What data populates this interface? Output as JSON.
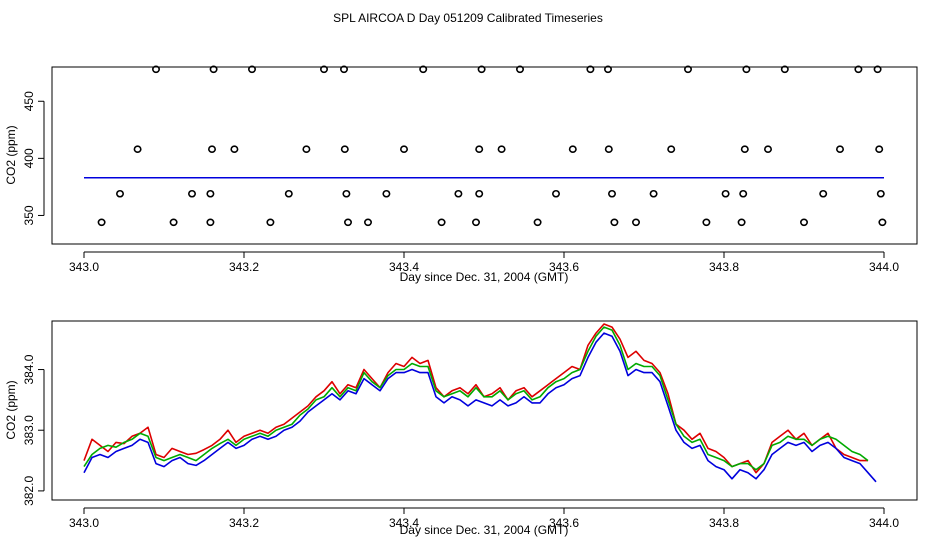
{
  "title": "SPL AIRCOA D  Day 051209  Calibrated Timeseries",
  "colors": {
    "red": "#dd0000",
    "green": "#00aa00",
    "blue": "#0000dd",
    "axis": "#000000"
  },
  "chart_data": [
    {
      "type": "scatter",
      "xlabel": "Day since Dec. 31, 2004 (GMT)",
      "ylabel": "CO2 (ppm)",
      "xlim": [
        343.0,
        344.0
      ],
      "ylim": [
        325,
        480
      ],
      "xticks": [
        343.0,
        343.2,
        343.4,
        343.6,
        343.8,
        344.0
      ],
      "xtick_labels": [
        "343.0",
        "343.2",
        "343.4",
        "343.6",
        "343.8",
        "344.0"
      ],
      "yticks": [
        350,
        400,
        450
      ],
      "ytick_labels": [
        "350",
        "400",
        "450"
      ],
      "reference_points": {
        "x": [
          343.09,
          343.162,
          343.21,
          343.3,
          343.325,
          343.424,
          343.497,
          343.545,
          343.633,
          343.655,
          343.755,
          343.828,
          343.876,
          343.968,
          343.992,
          343.067,
          343.16,
          343.188,
          343.278,
          343.326,
          343.4,
          343.494,
          343.522,
          343.611,
          343.656,
          343.734,
          343.826,
          343.855,
          343.945,
          343.994,
          343.045,
          343.135,
          343.158,
          343.256,
          343.328,
          343.378,
          343.468,
          343.494,
          343.59,
          343.66,
          343.712,
          343.802,
          343.824,
          343.924,
          343.996,
          343.022,
          343.112,
          343.158,
          343.233,
          343.33,
          343.355,
          343.447,
          343.49,
          343.567,
          343.663,
          343.69,
          343.778,
          343.822,
          343.9,
          343.998
        ],
        "y": [
          478,
          478,
          478,
          478,
          478,
          478,
          478,
          478,
          478,
          478,
          478,
          478,
          478,
          478,
          478,
          408,
          408,
          408,
          408,
          408,
          408,
          408,
          408,
          408,
          408,
          408,
          408,
          408,
          408,
          408,
          369,
          369,
          369,
          369,
          369,
          369,
          369,
          369,
          369,
          369,
          369,
          369,
          369,
          369,
          369,
          344,
          344,
          344,
          344,
          344,
          344,
          344,
          344,
          344,
          344,
          344,
          344,
          344,
          344,
          344
        ]
      },
      "series": [
        {
          "name": "red",
          "color": "#dd0000",
          "x": [
            343.0,
            344.0
          ],
          "values": [
            383.0,
            383.0
          ]
        },
        {
          "name": "green",
          "color": "#00aa00",
          "x": [
            343.0,
            344.0
          ],
          "values": [
            383.0,
            383.0
          ]
        },
        {
          "name": "blue",
          "color": "#0000dd",
          "x": [
            343.0,
            344.0
          ],
          "values": [
            383.0,
            383.0
          ]
        }
      ]
    },
    {
      "type": "line",
      "xlabel": "Day since Dec. 31, 2004 (GMT)",
      "ylabel": "CO2 (ppm)",
      "xlim": [
        343.0,
        344.0
      ],
      "ylim": [
        381.85,
        384.8
      ],
      "xticks": [
        343.0,
        343.2,
        343.4,
        343.6,
        343.8,
        344.0
      ],
      "xtick_labels": [
        "343.0",
        "343.2",
        "343.4",
        "343.6",
        "343.8",
        "344.0"
      ],
      "yticks": [
        382.0,
        383.0,
        384.0
      ],
      "ytick_labels": [
        "382.0",
        "383.0",
        "384.0"
      ],
      "series": [
        {
          "name": "red",
          "color": "#dd0000",
          "x": [
            343.0,
            343.01,
            343.02,
            343.03,
            343.04,
            343.05,
            343.06,
            343.07,
            343.08,
            343.09,
            343.1,
            343.11,
            343.12,
            343.13,
            343.14,
            343.15,
            343.16,
            343.17,
            343.18,
            343.19,
            343.2,
            343.21,
            343.22,
            343.23,
            343.24,
            343.25,
            343.26,
            343.27,
            343.28,
            343.29,
            343.3,
            343.31,
            343.32,
            343.33,
            343.34,
            343.35,
            343.36,
            343.37,
            343.38,
            343.39,
            343.4,
            343.41,
            343.42,
            343.43,
            343.44,
            343.45,
            343.46,
            343.47,
            343.48,
            343.49,
            343.5,
            343.51,
            343.52,
            343.53,
            343.54,
            343.55,
            343.56,
            343.57,
            343.58,
            343.59,
            343.6,
            343.61,
            343.62,
            343.63,
            343.64,
            343.65,
            343.66,
            343.67,
            343.68,
            343.69,
            343.7,
            343.71,
            343.72,
            343.73,
            343.74,
            343.75,
            343.76,
            343.77,
            343.78,
            343.79,
            343.8,
            343.81,
            343.82,
            343.83,
            343.84,
            343.85,
            343.86,
            343.87,
            343.88,
            343.89,
            343.9,
            343.91,
            343.92,
            343.93,
            343.94,
            343.95,
            343.96,
            343.97,
            343.98
          ],
          "values": [
            382.5,
            382.85,
            382.75,
            382.65,
            382.8,
            382.78,
            382.9,
            382.95,
            383.05,
            382.6,
            382.55,
            382.7,
            382.65,
            382.6,
            382.62,
            382.68,
            382.75,
            382.85,
            383.0,
            382.8,
            382.9,
            382.95,
            383.0,
            382.95,
            383.05,
            383.1,
            383.2,
            383.3,
            383.4,
            383.55,
            383.65,
            383.8,
            383.6,
            383.75,
            383.7,
            384.0,
            383.85,
            383.7,
            383.95,
            384.1,
            384.05,
            384.2,
            384.1,
            384.15,
            383.7,
            383.55,
            383.65,
            383.7,
            383.6,
            383.75,
            383.55,
            383.6,
            383.7,
            383.5,
            383.65,
            383.7,
            383.55,
            383.65,
            383.75,
            383.85,
            383.95,
            384.05,
            384.0,
            384.4,
            384.6,
            384.75,
            384.7,
            384.5,
            384.2,
            384.3,
            384.15,
            384.1,
            383.95,
            383.6,
            383.1,
            383.0,
            382.85,
            382.95,
            382.7,
            382.65,
            382.55,
            382.4,
            382.45,
            382.5,
            382.3,
            382.45,
            382.8,
            382.9,
            383.0,
            382.85,
            382.95,
            382.75,
            382.85,
            382.95,
            382.7,
            382.6,
            382.55,
            382.5,
            382.5
          ]
        },
        {
          "name": "green",
          "color": "#00aa00",
          "x": [
            343.0,
            343.01,
            343.02,
            343.03,
            343.04,
            343.05,
            343.06,
            343.07,
            343.08,
            343.09,
            343.1,
            343.11,
            343.12,
            343.13,
            343.14,
            343.15,
            343.16,
            343.17,
            343.18,
            343.19,
            343.2,
            343.21,
            343.22,
            343.23,
            343.24,
            343.25,
            343.26,
            343.27,
            343.28,
            343.29,
            343.3,
            343.31,
            343.32,
            343.33,
            343.34,
            343.35,
            343.36,
            343.37,
            343.38,
            343.39,
            343.4,
            343.41,
            343.42,
            343.43,
            343.44,
            343.45,
            343.46,
            343.47,
            343.48,
            343.49,
            343.5,
            343.51,
            343.52,
            343.53,
            343.54,
            343.55,
            343.56,
            343.57,
            343.58,
            343.59,
            343.6,
            343.61,
            343.62,
            343.63,
            343.64,
            343.65,
            343.66,
            343.67,
            343.68,
            343.69,
            343.7,
            343.71,
            343.72,
            343.73,
            343.74,
            343.75,
            343.76,
            343.77,
            343.78,
            343.79,
            343.8,
            343.81,
            343.82,
            343.83,
            343.84,
            343.85,
            343.86,
            343.87,
            343.88,
            343.89,
            343.9,
            343.91,
            343.92,
            343.93,
            343.94,
            343.95,
            343.96,
            343.97,
            343.98
          ],
          "values": [
            382.4,
            382.6,
            382.7,
            382.75,
            382.72,
            382.8,
            382.85,
            382.95,
            382.9,
            382.55,
            382.5,
            382.55,
            382.6,
            382.55,
            382.5,
            382.6,
            382.7,
            382.78,
            382.85,
            382.75,
            382.85,
            382.9,
            382.95,
            382.9,
            383.0,
            383.05,
            383.1,
            383.25,
            383.35,
            383.5,
            383.55,
            383.7,
            383.55,
            383.7,
            383.65,
            383.95,
            383.8,
            383.7,
            383.9,
            384.0,
            384.0,
            384.1,
            384.05,
            384.05,
            383.65,
            383.55,
            383.6,
            383.65,
            383.55,
            383.7,
            383.55,
            383.55,
            383.65,
            383.5,
            383.6,
            383.65,
            383.5,
            383.55,
            383.7,
            383.8,
            383.85,
            383.95,
            384.0,
            384.3,
            384.55,
            384.7,
            384.65,
            384.4,
            384.0,
            384.1,
            384.05,
            384.05,
            383.9,
            383.5,
            383.1,
            382.9,
            382.8,
            382.85,
            382.6,
            382.55,
            382.5,
            382.4,
            382.45,
            382.45,
            382.35,
            382.45,
            382.75,
            382.8,
            382.9,
            382.85,
            382.85,
            382.75,
            382.85,
            382.9,
            382.85,
            382.75,
            382.65,
            382.6,
            382.5
          ]
        },
        {
          "name": "blue",
          "color": "#0000dd",
          "x": [
            343.0,
            343.01,
            343.02,
            343.03,
            343.04,
            343.05,
            343.06,
            343.07,
            343.08,
            343.09,
            343.1,
            343.11,
            343.12,
            343.13,
            343.14,
            343.15,
            343.16,
            343.17,
            343.18,
            343.19,
            343.2,
            343.21,
            343.22,
            343.23,
            343.24,
            343.25,
            343.26,
            343.27,
            343.28,
            343.29,
            343.3,
            343.31,
            343.32,
            343.33,
            343.34,
            343.35,
            343.36,
            343.37,
            343.38,
            343.39,
            343.4,
            343.41,
            343.42,
            343.43,
            343.44,
            343.45,
            343.46,
            343.47,
            343.48,
            343.49,
            343.5,
            343.51,
            343.52,
            343.53,
            343.54,
            343.55,
            343.56,
            343.57,
            343.58,
            343.59,
            343.6,
            343.61,
            343.62,
            343.63,
            343.64,
            343.65,
            343.66,
            343.67,
            343.68,
            343.69,
            343.7,
            343.71,
            343.72,
            343.73,
            343.74,
            343.75,
            343.76,
            343.77,
            343.78,
            343.79,
            343.8,
            343.81,
            343.82,
            343.83,
            343.84,
            343.85,
            343.86,
            343.87,
            343.88,
            343.89,
            343.9,
            343.91,
            343.92,
            343.93,
            343.94,
            343.95,
            343.96,
            343.97,
            343.98,
            343.99
          ],
          "values": [
            382.3,
            382.55,
            382.6,
            382.55,
            382.65,
            382.7,
            382.75,
            382.85,
            382.8,
            382.45,
            382.4,
            382.5,
            382.55,
            382.45,
            382.42,
            382.5,
            382.6,
            382.7,
            382.8,
            382.7,
            382.75,
            382.85,
            382.9,
            382.85,
            382.9,
            383.0,
            383.05,
            383.15,
            383.3,
            383.4,
            383.5,
            383.6,
            383.5,
            383.65,
            383.6,
            383.85,
            383.75,
            383.65,
            383.85,
            383.95,
            383.95,
            384.0,
            383.95,
            383.95,
            383.55,
            383.45,
            383.55,
            383.5,
            383.4,
            383.5,
            383.45,
            383.4,
            383.5,
            383.4,
            383.45,
            383.55,
            383.45,
            383.45,
            383.6,
            383.7,
            383.75,
            383.85,
            383.9,
            384.2,
            384.45,
            384.6,
            384.55,
            384.3,
            383.9,
            384.0,
            383.95,
            383.95,
            383.8,
            383.4,
            383.0,
            382.8,
            382.7,
            382.75,
            382.5,
            382.4,
            382.35,
            382.2,
            382.35,
            382.3,
            382.2,
            382.35,
            382.6,
            382.7,
            382.8,
            382.75,
            382.8,
            382.65,
            382.75,
            382.8,
            382.7,
            382.55,
            382.5,
            382.45,
            382.3,
            382.15
          ]
        }
      ]
    }
  ]
}
